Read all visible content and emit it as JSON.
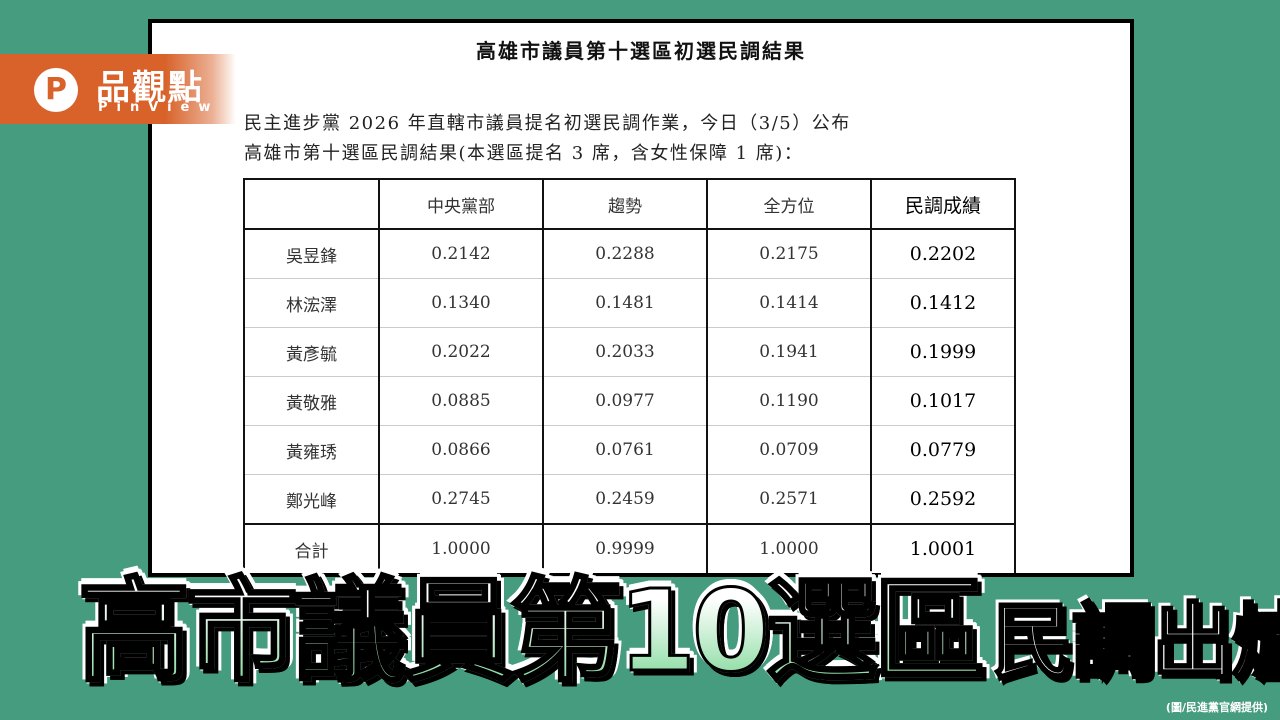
{
  "logo": {
    "mark": "P",
    "name_cn": "品觀點",
    "name_en": "PinView"
  },
  "document": {
    "title": "高雄市議員第十選區初選民調結果",
    "intro_line1": "民主進步黨 2026 年直轄市議員提名初選民調作業，今日（3/5）公布",
    "intro_line2": "高雄市第十選區民調結果(本選區提名 3 席，含女性保障 1 席)："
  },
  "table": {
    "columns": [
      "",
      "中央黨部",
      "趨勢",
      "全方位",
      "民調成績"
    ],
    "rows": [
      [
        "吳昱鋒",
        "0.2142",
        "0.2288",
        "0.2175",
        "0.2202"
      ],
      [
        "林浤澤",
        "0.1340",
        "0.1481",
        "0.1414",
        "0.1412"
      ],
      [
        "黃彥毓",
        "0.2022",
        "0.2033",
        "0.1941",
        "0.1999"
      ],
      [
        "黃敬雅",
        "0.0885",
        "0.0977",
        "0.1190",
        "0.1017"
      ],
      [
        "黃雍琇",
        "0.0866",
        "0.0761",
        "0.0709",
        "0.0779"
      ],
      [
        "鄭光峰",
        "0.2745",
        "0.2459",
        "0.2571",
        "0.2592"
      ],
      [
        "合計",
        "1.0000",
        "0.9999",
        "1.0000",
        "1.0001"
      ]
    ]
  },
  "headline": {
    "main": "高市議員第10選區",
    "sub": "民調出爐"
  },
  "credit": "(圖/民進黨官網提供)",
  "colors": {
    "background": "#469c7e",
    "brand": "#d8622a"
  }
}
